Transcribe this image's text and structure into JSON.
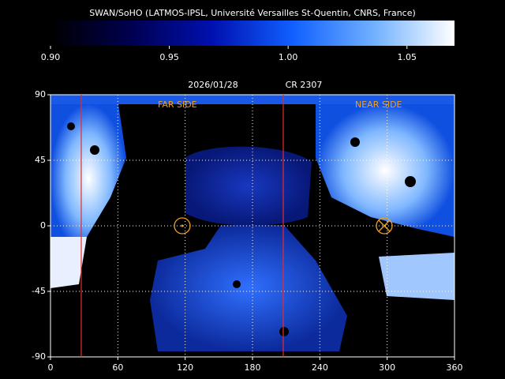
{
  "header": {
    "title": "SWAN/SoHO (LATMOS-IPSL, Université Versailles St-Quentin, CNRS, France)"
  },
  "colorbar": {
    "lim": [
      0.9,
      1.07
    ],
    "ticks": [
      {
        "value": 0.9,
        "label": "0.90"
      },
      {
        "value": 0.95,
        "label": "0.95"
      },
      {
        "value": 1.0,
        "label": "1.00"
      },
      {
        "value": 1.05,
        "label": "1.05"
      }
    ],
    "colors": [
      "#000000",
      "#000050",
      "#0010b0",
      "#1060ff",
      "#70b0ff",
      "#ffffff"
    ]
  },
  "chart_data": {
    "type": "map",
    "date": "2026/01/28",
    "rotation": "CR 2307",
    "xlim": [
      0,
      360
    ],
    "ylim": [
      -90,
      90
    ],
    "xticks": [
      0,
      60,
      120,
      180,
      240,
      300,
      360
    ],
    "yticks": [
      -90,
      -45,
      0,
      45,
      90
    ],
    "grid": true,
    "line_color": "#e03030",
    "lines": [
      27.4,
      207.4
    ],
    "marker_color": "#f0a020",
    "far_side": {
      "label": "FAR SIDE",
      "lon": 117.4,
      "lat": 0
    },
    "near_side": {
      "label": "NEAR SIDE",
      "lon": 297.4,
      "lat": 0
    }
  }
}
